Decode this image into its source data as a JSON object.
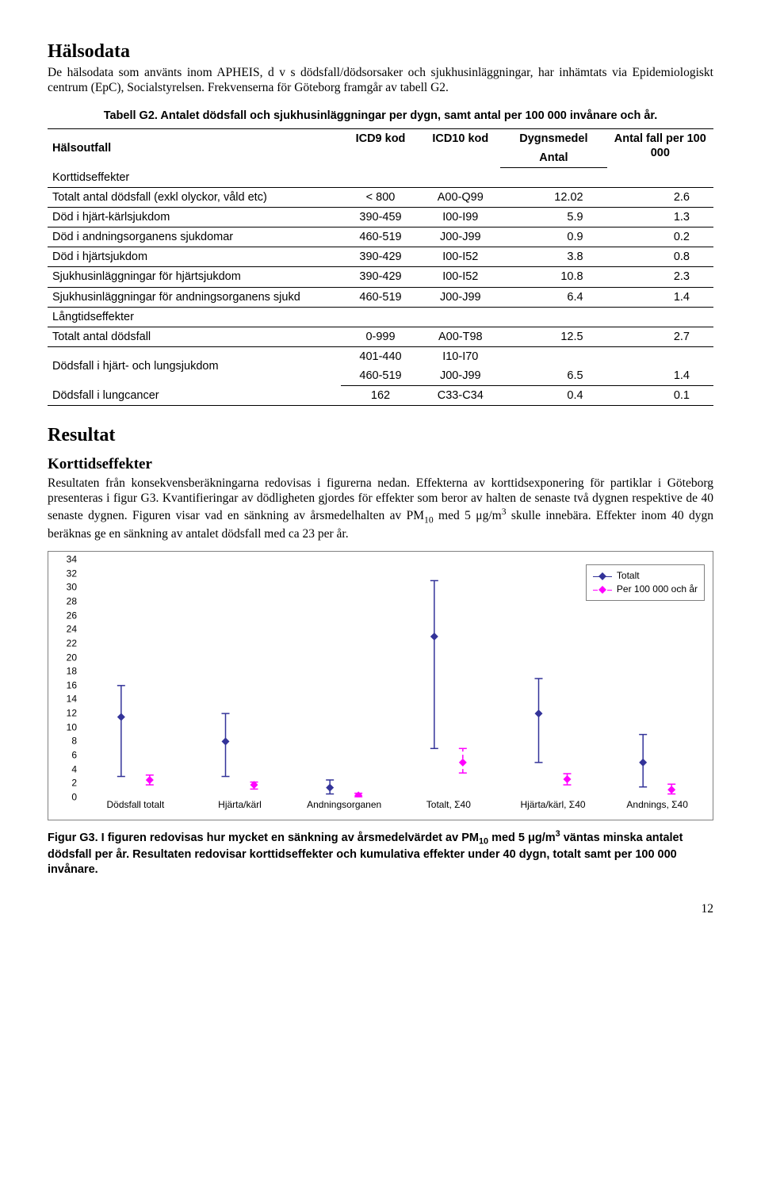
{
  "sections": {
    "halsodata_title": "Hälsodata",
    "halsodata_body": "De hälsodata som använts inom APHEIS, d v s dödsfall/dödsorsaker och sjukhusinläggningar, har inhämtats via Epidemiologiskt centrum (EpC), Socialstyrelsen. Frekvenserna för Göteborg framgår av tabell G2.",
    "table_caption": "Tabell G2. Antalet dödsfall och sjukhusinläggningar per dygn, samt antal per 100 000 invånare och år.",
    "resultat_title": "Resultat",
    "kort_title": "Korttidseffekter",
    "kort_body_html": "Resultaten från konsekvensberäkningarna redovisas i figurerna nedan. Effekterna av korttidsexponering för partiklar i Göteborg presenteras i figur G3. Kvantifieringar av dödligheten gjordes för effekter som beror av halten de senaste två dygnen respektive de 40 senaste dygnen. Figuren visar vad en sänkning av årsmedelhalten av PM<span class=\"sub\">10</span> med 5 &mu;g/m<span class=\"sup\">3</span> skulle innebära. Effekter inom 40 dygn beräknas ge en sänkning av antalet dödsfall med ca 23 per år.",
    "fig_caption_html": "Figur G3. I figuren redovisas hur mycket en sänkning av årsmedelvärdet av PM<span class=\"sub\">10</span> med 5 &mu;g/m<span class=\"sup\">3</span> väntas minska antalet dödsfall per år. Resultaten redovisar korttidseffekter och kumulativa effekter under 40 dygn, totalt samt per 100 000 invånare.",
    "page_number": "12"
  },
  "table": {
    "headers": {
      "halsoutfall": "Hälsoutfall",
      "icd9": "ICD9 kod",
      "icd10": "ICD10 kod",
      "dygnsmedel": "Dygnsmedel",
      "antal_sub": "Antal",
      "antal_fall": "Antal fall per 100 000"
    },
    "groups": [
      {
        "title": "Korttidseffekter",
        "rows": [
          {
            "label": "Totalt antal dödsfall (exkl olyckor, våld etc)",
            "icd9": "< 800",
            "icd10": "A00-Q99",
            "antal": "12.02",
            "per": "2.6"
          },
          {
            "label": "Död i hjärt-kärlsjukdom",
            "icd9": "390-459",
            "icd10": "I00-I99",
            "antal": "5.9",
            "per": "1.3"
          },
          {
            "label": "Död i andningsorganens sjukdomar",
            "icd9": "460-519",
            "icd10": "J00-J99",
            "antal": "0.9",
            "per": "0.2"
          },
          {
            "label": "Död i  hjärtsjukdom",
            "icd9": "390-429",
            "icd10": "I00-I52",
            "antal": "3.8",
            "per": "0.8"
          },
          {
            "label": "Sjukhusinläggningar för hjärtsjukdom",
            "icd9": "390-429",
            "icd10": "I00-I52",
            "antal": "10.8",
            "per": "2.3"
          },
          {
            "label": "Sjukhusinläggningar för andningsorganens sjukd",
            "icd9": "460-519",
            "icd10": "J00-J99",
            "antal": "6.4",
            "per": "1.4"
          }
        ]
      },
      {
        "title": "Långtidseffekter",
        "rows": [
          {
            "label": "Totalt antal dödsfall",
            "icd9": "0-999",
            "icd10": "A00-T98",
            "antal": "12.5",
            "per": "2.7"
          },
          {
            "label": "Dödsfall i hjärt- och lungsjukdom",
            "icd9": "401-440",
            "icd10": "I10-I70",
            "antal": "",
            "per": "",
            "multi": true,
            "icd9_2": "460-519",
            "icd10_2": "J00-J99",
            "antal2": "6.5",
            "per2": "1.4"
          },
          {
            "label": "Dödsfall i lungcancer",
            "icd9": "162",
            "icd10": "C33-C34",
            "antal": "0.4",
            "per": "0.1"
          }
        ]
      }
    ]
  },
  "chart": {
    "y_min": 0,
    "y_max": 34,
    "y_step": 2,
    "colors": {
      "totalt": "#333399",
      "per100k": "#ff00ff",
      "border": "#808080"
    },
    "legend": {
      "totalt": "Totalt",
      "per100k": "Per 100 000 och år"
    },
    "categories": [
      {
        "label": "Dödsfall totalt",
        "tot": {
          "val": 11.5,
          "lo": 3,
          "hi": 16
        },
        "per": {
          "val": 2.5,
          "lo": 1.8,
          "hi": 3.2
        }
      },
      {
        "label": "Hjärta/kärl",
        "tot": {
          "val": 8,
          "lo": 3,
          "hi": 12
        },
        "per": {
          "val": 1.8,
          "lo": 1.2,
          "hi": 2.2
        }
      },
      {
        "label": "Andningsorganen",
        "tot": {
          "val": 1.4,
          "lo": 0.5,
          "hi": 2.5
        },
        "per": {
          "val": 0.3,
          "lo": 0.1,
          "hi": 0.6
        }
      },
      {
        "label": "Totalt, Σ40",
        "tot": {
          "val": 23,
          "lo": 7,
          "hi": 31
        },
        "per": {
          "val": 5,
          "lo": 3.5,
          "hi": 7
        }
      },
      {
        "label": "Hjärta/kärl, Σ40",
        "tot": {
          "val": 12,
          "lo": 5,
          "hi": 17
        },
        "per": {
          "val": 2.6,
          "lo": 1.8,
          "hi": 3.4
        }
      },
      {
        "label": "Andnings, Σ40",
        "tot": {
          "val": 5,
          "lo": 1.5,
          "hi": 9
        },
        "per": {
          "val": 1.1,
          "lo": 0.5,
          "hi": 1.9
        }
      }
    ]
  }
}
